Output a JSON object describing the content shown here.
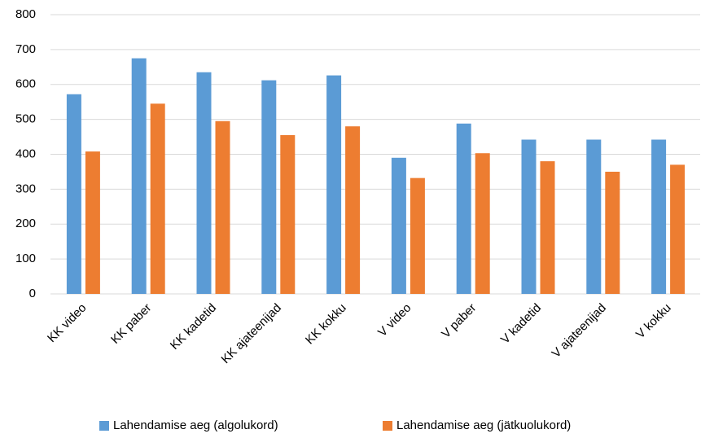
{
  "chart_data": {
    "type": "bar",
    "categories": [
      "KK video",
      "KK paber",
      "KK kadetid",
      "KK ajateenijad",
      "KK kokku",
      "V video",
      "V paber",
      "V kadetid",
      "V ajateenijad",
      "V kokku"
    ],
    "series": [
      {
        "name": "Lahendamise aeg (algolukord)",
        "color": "#5b9bd5",
        "values": [
          572,
          675,
          635,
          612,
          626,
          390,
          488,
          442,
          442,
          442
        ]
      },
      {
        "name": "Lahendamise aeg (jätkuolukord)",
        "color": "#ed7d31",
        "values": [
          408,
          545,
          495,
          455,
          480,
          332,
          403,
          380,
          350,
          370
        ]
      }
    ],
    "ylim": [
      0,
      800
    ],
    "yticks": [
      0,
      100,
      200,
      300,
      400,
      500,
      600,
      700,
      800
    ],
    "grid": true,
    "legend": "bottom"
  }
}
